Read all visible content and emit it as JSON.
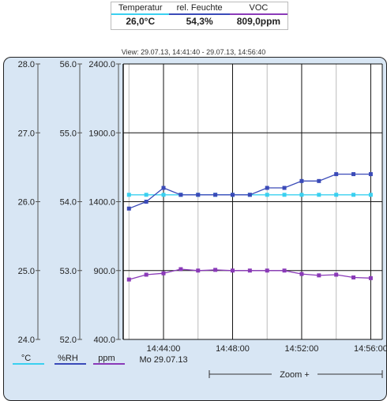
{
  "readout": {
    "headers": [
      "Temperatur",
      "rel. Feuchte",
      "VOC"
    ],
    "values": [
      "26,0°C",
      "54,3%",
      "809,0ppm"
    ]
  },
  "view_range": "View: 29.07.13, 14:41:40 - 29.07.13, 14:56:40",
  "zoom_label": "Zoom +",
  "colors": {
    "temp": "#3ad0f0",
    "rh": "#3a4ab8",
    "voc": "#8a3ab8",
    "panel": "#d8e6f4"
  },
  "chart_data": {
    "type": "line",
    "x_unit": "time",
    "x_tick_labels": [
      "14:44:00",
      "14:48:00",
      "14:52:00",
      "14:56:00"
    ],
    "x_date_label": "Mo 29.07.13",
    "axes": [
      {
        "id": "temp",
        "unit": "°C",
        "ylim": [
          24.0,
          28.0
        ],
        "ticks": [
          "24.0",
          "25.0",
          "26.0",
          "27.0",
          "28.0"
        ]
      },
      {
        "id": "rh",
        "unit": "%RH",
        "ylim": [
          52.0,
          56.0
        ],
        "ticks": [
          "52.0",
          "53.0",
          "54.0",
          "55.0",
          "56.0"
        ]
      },
      {
        "id": "voc",
        "unit": "ppm",
        "ylim": [
          400.0,
          2400.0
        ],
        "ticks": [
          "400.0",
          "900.0",
          "1400.0",
          "1900.0",
          "2400.0"
        ]
      }
    ],
    "x": [
      "14:42:00",
      "14:43:00",
      "14:44:00",
      "14:45:00",
      "14:46:00",
      "14:47:00",
      "14:48:00",
      "14:49:00",
      "14:50:00",
      "14:51:00",
      "14:52:00",
      "14:53:00",
      "14:54:00",
      "14:55:00",
      "14:56:00"
    ],
    "series": [
      {
        "axis": "temp",
        "values": [
          26.1,
          26.1,
          26.1,
          26.1,
          26.1,
          26.1,
          26.1,
          26.1,
          26.1,
          26.1,
          26.1,
          26.1,
          26.1,
          26.1,
          26.1
        ]
      },
      {
        "axis": "rh",
        "values": [
          53.9,
          54.0,
          54.2,
          54.1,
          54.1,
          54.1,
          54.1,
          54.1,
          54.2,
          54.2,
          54.3,
          54.3,
          54.4,
          54.4,
          54.4
        ]
      },
      {
        "axis": "voc",
        "values": [
          835,
          870,
          880,
          910,
          900,
          905,
          900,
          900,
          900,
          900,
          875,
          865,
          870,
          850,
          845
        ]
      }
    ]
  }
}
